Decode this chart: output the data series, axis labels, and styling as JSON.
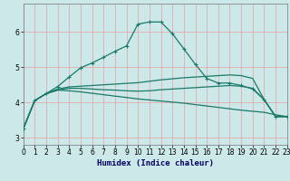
{
  "xlabel": "Humidex (Indice chaleur)",
  "bg_color": "#cce8e8",
  "grid_color": "#e8a0a0",
  "line_color": "#1a7a6a",
  "xlim": [
    0,
    23
  ],
  "ylim": [
    2.8,
    6.8
  ],
  "xticks": [
    0,
    1,
    2,
    3,
    4,
    5,
    6,
    7,
    8,
    9,
    10,
    11,
    12,
    13,
    14,
    15,
    16,
    17,
    18,
    19,
    20,
    21,
    22,
    23
  ],
  "yticks": [
    3,
    4,
    5,
    6
  ],
  "line1_x": [
    0,
    1,
    2,
    3,
    4,
    5,
    6,
    7,
    8,
    9,
    10,
    11,
    12,
    13,
    14,
    15,
    16,
    17,
    18,
    19,
    20,
    21,
    22,
    23
  ],
  "line1_y": [
    3.25,
    4.05,
    4.25,
    4.45,
    4.72,
    4.98,
    5.12,
    5.28,
    5.45,
    5.6,
    6.22,
    6.28,
    6.28,
    5.95,
    5.52,
    5.08,
    4.68,
    4.55,
    4.55,
    4.48,
    4.38,
    4.08,
    3.6,
    3.6
  ],
  "line2_x": [
    0,
    1,
    2,
    3,
    4,
    5,
    6,
    7,
    8,
    9,
    10,
    11,
    12,
    13,
    14,
    15,
    16,
    17,
    18,
    19,
    20,
    21,
    22,
    23
  ],
  "line2_y": [
    3.25,
    4.05,
    4.25,
    4.35,
    4.4,
    4.4,
    4.38,
    4.36,
    4.35,
    4.33,
    4.32,
    4.33,
    4.36,
    4.38,
    4.4,
    4.42,
    4.44,
    4.46,
    4.48,
    4.46,
    4.4,
    4.08,
    3.6,
    3.6
  ],
  "line3_x": [
    0,
    1,
    2,
    3,
    4,
    5,
    6,
    7,
    8,
    9,
    10,
    11,
    12,
    13,
    14,
    15,
    16,
    17,
    18,
    19,
    20,
    21,
    22,
    23
  ],
  "line3_y": [
    3.25,
    4.05,
    4.25,
    4.35,
    4.33,
    4.3,
    4.26,
    4.22,
    4.18,
    4.14,
    4.1,
    4.07,
    4.04,
    4.01,
    3.98,
    3.94,
    3.9,
    3.86,
    3.82,
    3.78,
    3.75,
    3.72,
    3.65,
    3.6
  ],
  "line4_x": [
    0,
    1,
    2,
    3,
    4,
    5,
    6,
    7,
    8,
    9,
    10,
    11,
    12,
    13,
    14,
    15,
    16,
    17,
    18,
    19,
    20,
    21,
    22,
    23
  ],
  "line4_y": [
    3.25,
    4.05,
    4.25,
    4.38,
    4.44,
    4.46,
    4.48,
    4.5,
    4.52,
    4.54,
    4.56,
    4.6,
    4.64,
    4.67,
    4.7,
    4.72,
    4.74,
    4.76,
    4.78,
    4.76,
    4.68,
    4.08,
    3.6,
    3.6
  ]
}
